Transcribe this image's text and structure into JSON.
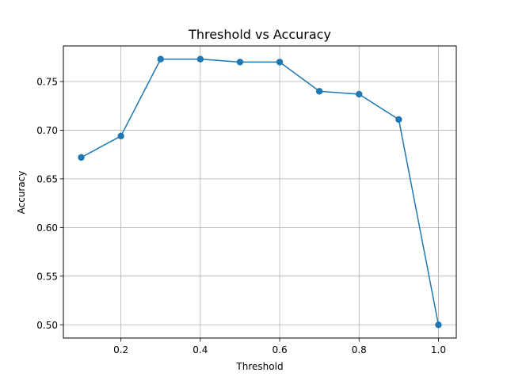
{
  "chart_data": {
    "type": "line",
    "title": "Threshold vs Accuracy",
    "xlabel": "Threshold",
    "ylabel": "Accuracy",
    "x": [
      0.1,
      0.2,
      0.3,
      0.4,
      0.5,
      0.6,
      0.7,
      0.8,
      0.9,
      1.0
    ],
    "series": [
      {
        "name": "",
        "values": [
          0.672,
          0.694,
          0.773,
          0.773,
          0.77,
          0.77,
          0.74,
          0.737,
          0.711,
          0.5
        ],
        "color": "#1f77b4",
        "marker": "circle"
      }
    ],
    "xlim": [
      0.055,
      1.045
    ],
    "ylim": [
      0.4864,
      0.7866
    ],
    "xticks": [
      {
        "value": 0.2,
        "label": "0.2"
      },
      {
        "value": 0.4,
        "label": "0.4"
      },
      {
        "value": 0.6,
        "label": "0.6"
      },
      {
        "value": 0.8,
        "label": "0.8"
      },
      {
        "value": 1.0,
        "label": "1.0"
      }
    ],
    "yticks": [
      {
        "value": 0.5,
        "label": "0.50"
      },
      {
        "value": 0.55,
        "label": "0.55"
      },
      {
        "value": 0.6,
        "label": "0.60"
      },
      {
        "value": 0.65,
        "label": "0.65"
      },
      {
        "value": 0.7,
        "label": "0.70"
      },
      {
        "value": 0.75,
        "label": "0.75"
      }
    ],
    "grid": true,
    "legend": "none"
  }
}
